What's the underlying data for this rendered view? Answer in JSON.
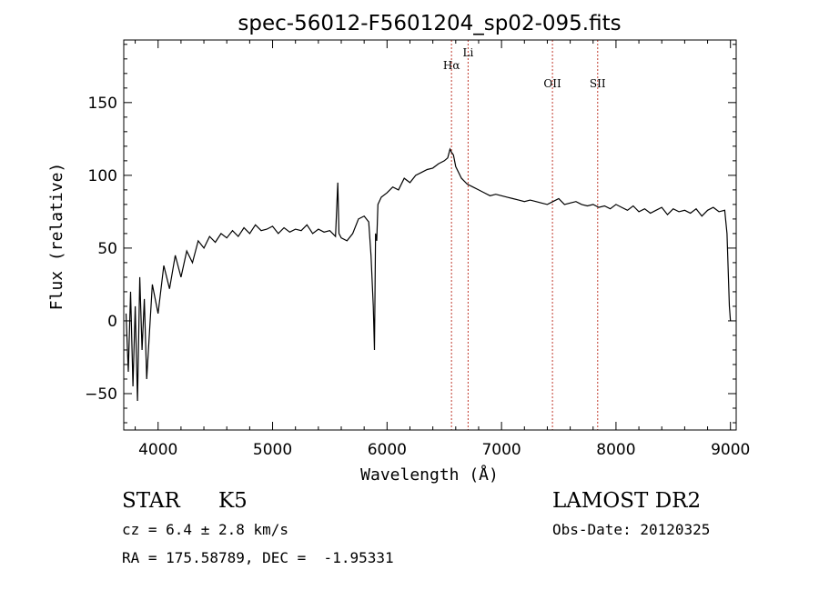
{
  "chart_data": {
    "type": "line",
    "title": "spec-56012-F5601204_sp02-095.fits",
    "xlabel": "Wavelength (Å)",
    "ylabel": "Flux (relative)",
    "xlim": [
      3700,
      9050
    ],
    "ylim": [
      -75,
      193
    ],
    "xticks": [
      4000,
      5000,
      6000,
      7000,
      8000,
      9000
    ],
    "yticks": [
      -50,
      0,
      50,
      100,
      150
    ],
    "line_color": "#000000",
    "marker_color": "#c0392b",
    "series": [
      {
        "x": [
          3720,
          3740,
          3760,
          3780,
          3800,
          3820,
          3840,
          3860,
          3880,
          3900,
          3950,
          4000,
          4050,
          4100,
          4150,
          4200,
          4250,
          4300,
          4350,
          4400,
          4450,
          4500,
          4550,
          4600,
          4650,
          4700,
          4750,
          4800,
          4850,
          4900,
          4950,
          5000,
          5050,
          5100,
          5150,
          5200,
          5250,
          5300,
          5350,
          5400,
          5450,
          5500,
          5550,
          5570,
          5580,
          5600,
          5650,
          5700,
          5750,
          5800,
          5840,
          5860,
          5880,
          5890,
          5900,
          5910,
          5920,
          5950,
          6000,
          6050,
          6100,
          6150,
          6200,
          6250,
          6300,
          6350,
          6400,
          6450,
          6500,
          6530,
          6550,
          6563,
          6580,
          6600,
          6650,
          6700,
          6750,
          6800,
          6850,
          6900,
          6950,
          7000,
          7050,
          7100,
          7150,
          7200,
          7250,
          7300,
          7350,
          7400,
          7450,
          7500,
          7550,
          7600,
          7650,
          7700,
          7750,
          7800,
          7850,
          7900,
          7950,
          8000,
          8050,
          8100,
          8150,
          8200,
          8250,
          8300,
          8350,
          8400,
          8450,
          8500,
          8550,
          8600,
          8650,
          8700,
          8750,
          8800,
          8850,
          8900,
          8950,
          8970,
          8990,
          9000
        ],
        "y": [
          5,
          -35,
          20,
          -45,
          10,
          -55,
          30,
          -20,
          15,
          -40,
          25,
          5,
          38,
          22,
          45,
          30,
          48,
          40,
          55,
          50,
          58,
          54,
          60,
          57,
          62,
          58,
          64,
          60,
          66,
          62,
          63,
          65,
          60,
          64,
          61,
          63,
          62,
          66,
          60,
          63,
          61,
          62,
          58,
          95,
          60,
          57,
          55,
          60,
          70,
          72,
          68,
          45,
          10,
          -20,
          60,
          55,
          80,
          85,
          88,
          92,
          90,
          98,
          95,
          100,
          102,
          104,
          105,
          108,
          110,
          112,
          118,
          116,
          114,
          106,
          98,
          94,
          92,
          90,
          88,
          86,
          87,
          86,
          85,
          84,
          83,
          82,
          83,
          82,
          81,
          80,
          82,
          84,
          80,
          81,
          82,
          80,
          79,
          80,
          78,
          79,
          77,
          80,
          78,
          76,
          79,
          75,
          77,
          74,
          76,
          78,
          73,
          77,
          75,
          76,
          74,
          77,
          72,
          76,
          78,
          75,
          76,
          60,
          10,
          0
        ]
      }
    ],
    "lines": [
      {
        "name": "Hα",
        "x": 6563
      },
      {
        "name": "Li",
        "x": 6708
      },
      {
        "name": "OII",
        "x": 7445
      },
      {
        "name": "SII",
        "x": 7840
      }
    ]
  },
  "info": {
    "object_class": "STAR",
    "subclass": "K5",
    "survey": "LAMOST DR2",
    "redshift": "cz = 6.4 ± 2.8 km/s",
    "obs_date": "Obs-Date: 20120325",
    "coords": "RA = 175.58789, DEC =  -1.95331"
  }
}
